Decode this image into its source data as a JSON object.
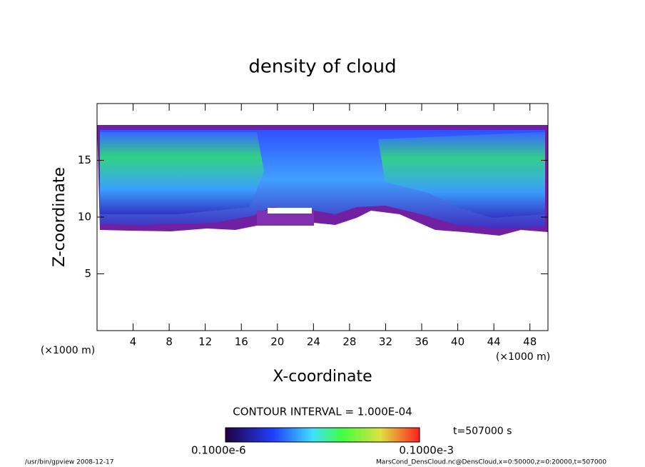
{
  "chart_data": {
    "type": "contour",
    "title": "density of cloud",
    "x_label": "X-coordinate",
    "y_label": "Z-coordinate",
    "x_unit": "(×1000 m)",
    "y_unit": "(×1000 m)",
    "xlim": [
      0,
      50
    ],
    "ylim": [
      0,
      20
    ],
    "xticks": [
      4,
      8,
      12,
      16,
      20,
      24,
      28,
      32,
      36,
      40,
      44,
      48
    ],
    "yticks": [
      5,
      10,
      15
    ],
    "contour_interval": "CONTOUR INTERVAL = 1.000E-04",
    "time_label": "t=507000 s",
    "colorbar_labels": [
      "0.1000e-6",
      "0.1000e-3"
    ],
    "footer_left": "/usr/bin/gpview  2008-12-17",
    "footer_right": "MarsCond_DensCloud.nc@DensCloud,x=0:50000,z=0:20000,t=507000"
  }
}
